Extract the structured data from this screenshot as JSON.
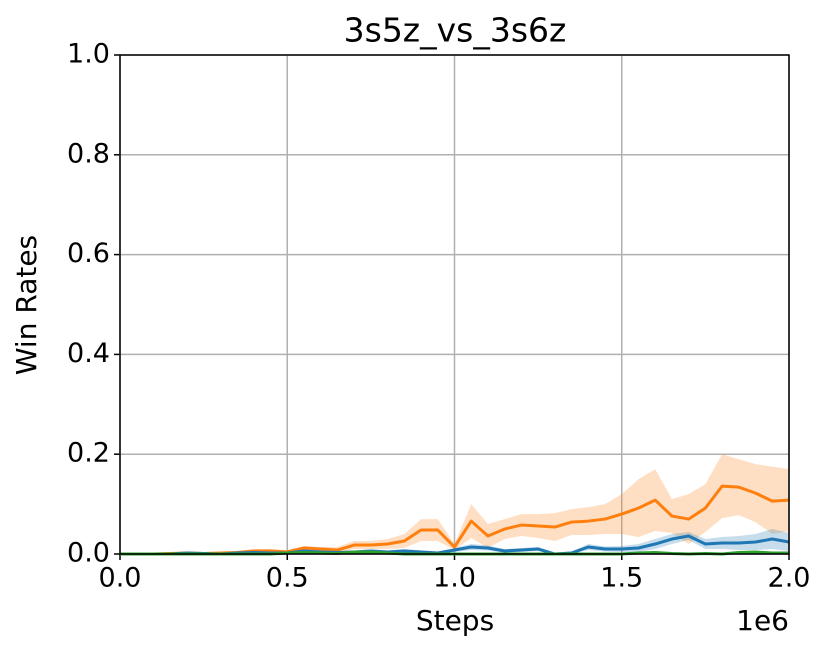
{
  "chart_data": {
    "type": "line",
    "title": "3s5z_vs_3s6z",
    "x_label": "Steps",
    "y_label": "Win Rates",
    "x_offset_label": "1e6",
    "x": [
      0,
      0.05,
      0.1,
      0.15,
      0.2,
      0.25,
      0.3,
      0.35,
      0.4,
      0.45,
      0.5,
      0.55,
      0.6,
      0.65,
      0.7,
      0.75,
      0.8,
      0.85,
      0.9,
      0.95,
      1.0,
      1.05,
      1.1,
      1.15,
      1.2,
      1.25,
      1.3,
      1.35,
      1.4,
      1.45,
      1.5,
      1.55,
      1.6,
      1.65,
      1.7,
      1.75,
      1.8,
      1.85,
      1.9,
      1.95,
      2.0
    ],
    "series": [
      {
        "color": "#ff7f0e",
        "values": [
          0,
          0,
          0,
          0.001,
          0.002,
          0.001,
          0.002,
          0.003,
          0.006,
          0.006,
          0.004,
          0.012,
          0.01,
          0.008,
          0.018,
          0.018,
          0.02,
          0.026,
          0.048,
          0.048,
          0.014,
          0.066,
          0.036,
          0.05,
          0.058,
          0.056,
          0.054,
          0.064,
          0.066,
          0.07,
          0.08,
          0.092,
          0.108,
          0.076,
          0.07,
          0.092,
          0.136,
          0.134,
          0.122,
          0.106,
          0.108
        ],
        "upper": [
          0,
          0,
          0,
          0.003,
          0.004,
          0.003,
          0.004,
          0.006,
          0.01,
          0.01,
          0.008,
          0.016,
          0.014,
          0.014,
          0.026,
          0.026,
          0.03,
          0.04,
          0.07,
          0.07,
          0.02,
          0.1,
          0.06,
          0.07,
          0.08,
          0.08,
          0.082,
          0.09,
          0.094,
          0.1,
          0.12,
          0.15,
          0.17,
          0.11,
          0.12,
          0.14,
          0.2,
          0.19,
          0.18,
          0.175,
          0.17
        ],
        "lower": [
          0,
          0,
          0,
          0,
          0,
          0,
          0,
          0,
          0.002,
          0.002,
          0,
          0.008,
          0.006,
          0.002,
          0.01,
          0.01,
          0.01,
          0.012,
          0.026,
          0.026,
          0.008,
          0.032,
          0.012,
          0.03,
          0.036,
          0.032,
          0.026,
          0.038,
          0.038,
          0.04,
          0.04,
          0.034,
          0.046,
          0.042,
          0.02,
          0.044,
          0.072,
          0.078,
          0.064,
          0.04,
          0.046
        ]
      },
      {
        "color": "#1f77b4",
        "values": [
          0,
          0,
          0,
          0,
          0.002,
          0.001,
          0,
          0.002,
          0.003,
          0.002,
          0.002,
          0.006,
          0.004,
          0.003,
          0.004,
          0.006,
          0.004,
          0.006,
          0.004,
          0.002,
          0.008,
          0.014,
          0.012,
          0.006,
          0.008,
          0.01,
          0,
          0.002,
          0.014,
          0.01,
          0.01,
          0.012,
          0.02,
          0.03,
          0.036,
          0.02,
          0.022,
          0.022,
          0.024,
          0.03,
          0.024
        ],
        "upper": [
          0,
          0,
          0,
          0,
          0.003,
          0.002,
          0.001,
          0.003,
          0.005,
          0.004,
          0.004,
          0.009,
          0.007,
          0.005,
          0.007,
          0.009,
          0.007,
          0.01,
          0.007,
          0.004,
          0.012,
          0.02,
          0.017,
          0.01,
          0.012,
          0.014,
          0.003,
          0.005,
          0.02,
          0.015,
          0.016,
          0.02,
          0.03,
          0.04,
          0.044,
          0.03,
          0.034,
          0.036,
          0.04,
          0.05,
          0.042
        ],
        "lower": [
          0,
          0,
          0,
          0,
          0.001,
          0,
          0,
          0.001,
          0.001,
          0,
          0,
          0.003,
          0.001,
          0.001,
          0.001,
          0.003,
          0.001,
          0.002,
          0.001,
          0,
          0.004,
          0.008,
          0.007,
          0.002,
          0.004,
          0.006,
          0,
          0,
          0.008,
          0.005,
          0.004,
          0.004,
          0.01,
          0.02,
          0.028,
          0.01,
          0.01,
          0.008,
          0.008,
          0.01,
          0.006
        ]
      },
      {
        "color": "#2ca02c",
        "values": [
          0,
          0,
          0,
          0,
          0,
          0,
          0,
          0,
          0,
          0,
          0.002,
          0.003,
          0.002,
          0.001,
          0.004,
          0.004,
          0.002,
          0,
          0,
          0,
          0,
          0,
          0,
          0,
          0,
          0,
          0,
          0,
          0,
          0,
          0,
          0.002,
          0.003,
          0.001,
          0,
          0.001,
          0,
          0.003,
          0.004,
          0.002,
          0.002
        ],
        "upper": [
          0,
          0,
          0,
          0,
          0,
          0,
          0,
          0,
          0,
          0,
          0.004,
          0.005,
          0.004,
          0.003,
          0.006,
          0.006,
          0.004,
          0.001,
          0.001,
          0.001,
          0.001,
          0.001,
          0.001,
          0.001,
          0.001,
          0.001,
          0.001,
          0.001,
          0.001,
          0.001,
          0.001,
          0.004,
          0.005,
          0.003,
          0.001,
          0.003,
          0.001,
          0.005,
          0.006,
          0.004,
          0.004
        ],
        "lower": [
          0,
          0,
          0,
          0,
          0,
          0,
          0,
          0,
          0,
          0,
          0,
          0.001,
          0,
          0,
          0.002,
          0.002,
          0,
          0,
          0,
          0,
          0,
          0,
          0,
          0,
          0,
          0,
          0,
          0,
          0,
          0,
          0,
          0,
          0.001,
          0,
          0,
          0,
          0,
          0.001,
          0.002,
          0,
          0
        ]
      }
    ],
    "xlim": [
      0,
      2.0
    ],
    "xticks": [
      {
        "value": 0,
        "label": "0.0"
      },
      0.5,
      {
        "value": 1,
        "label": "1.0"
      },
      1.5,
      {
        "value": 2,
        "label": "2.0"
      }
    ],
    "ylim": [
      0,
      1.0
    ],
    "yticks": [
      {
        "value": 0,
        "label": "0.0"
      },
      0.2,
      0.4,
      0.6,
      0.8,
      {
        "value": 1,
        "label": "1.0"
      }
    ],
    "grid": true
  }
}
